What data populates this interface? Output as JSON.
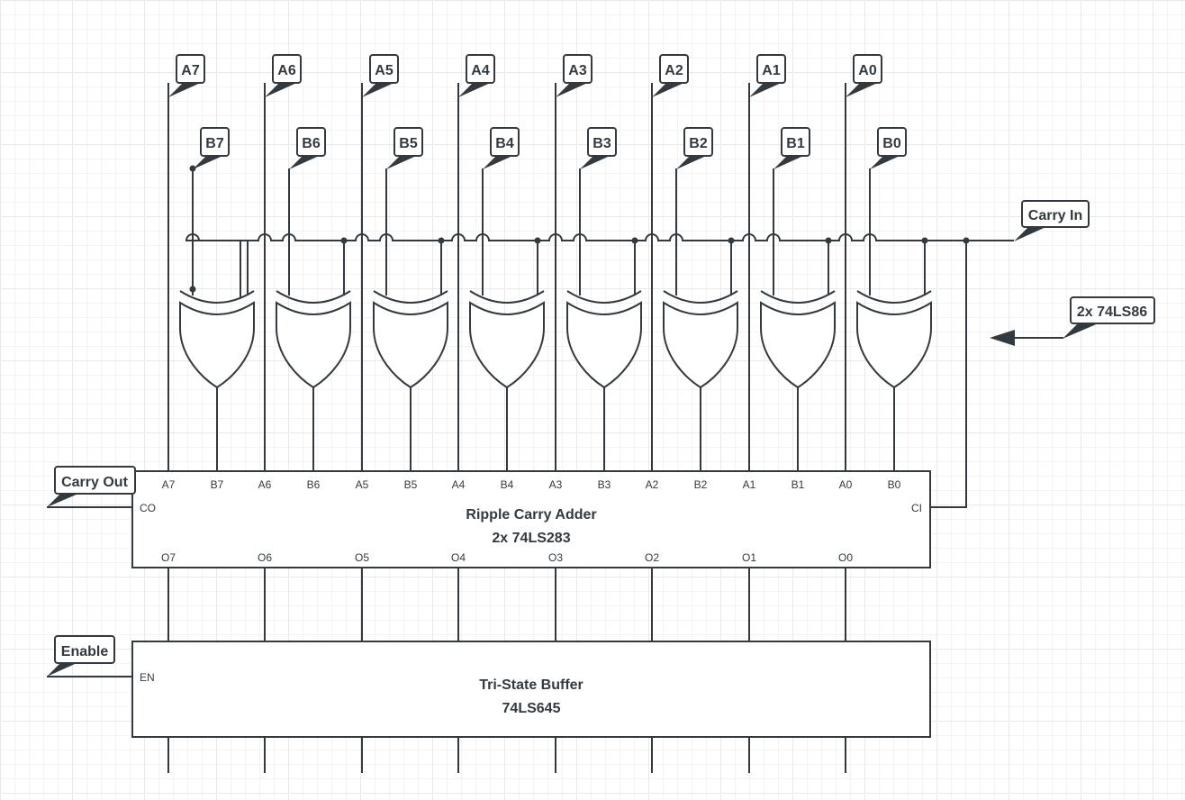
{
  "a_labels": [
    "A7",
    "A6",
    "A5",
    "A4",
    "A3",
    "A2",
    "A1",
    "A0"
  ],
  "b_labels": [
    "B7",
    "B6",
    "B5",
    "B4",
    "B3",
    "B2",
    "B1",
    "B0"
  ],
  "carry_in_label": "Carry In",
  "xor_chip_label": "2x 74LS86",
  "carry_out_label": "Carry Out",
  "enable_label": "Enable",
  "adder": {
    "title": "Ripple Carry Adder",
    "chip": "2x 74LS283",
    "input_pins": [
      "A7",
      "B7",
      "A6",
      "B6",
      "A5",
      "B5",
      "A4",
      "B4",
      "A3",
      "B3",
      "A2",
      "B2",
      "A1",
      "B1",
      "A0",
      "B0"
    ],
    "output_pins": [
      "O7",
      "O6",
      "O5",
      "O4",
      "O3",
      "O2",
      "O1",
      "O0"
    ],
    "carry_out_pin": "CO",
    "carry_in_pin": "CI"
  },
  "buffer": {
    "title": "Tri-State Buffer",
    "chip": "74LS645",
    "enable_pin": "EN"
  },
  "colors": {
    "line": "#333a3f",
    "grid": "#e9e9e9",
    "background": "#ffffff"
  }
}
